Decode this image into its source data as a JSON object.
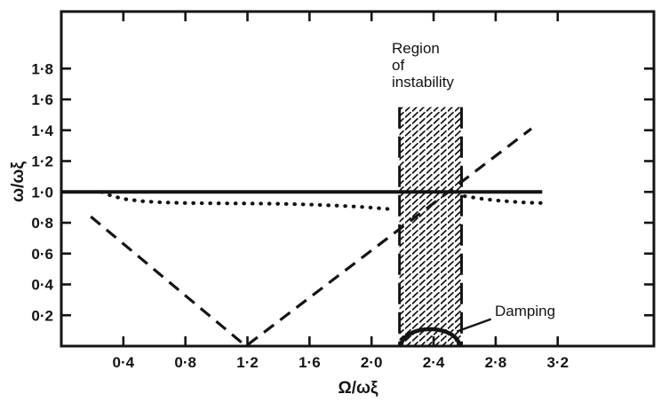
{
  "figure": {
    "background": "#ffffff",
    "ink": "#141414"
  },
  "chart_data": {
    "type": "line",
    "title": "",
    "xlabel": "Ω/ωξ",
    "ylabel": "ω/ωξ",
    "xlim": [
      0,
      3.82
    ],
    "ylim": [
      0,
      2.17
    ],
    "grid": false,
    "legend": "none",
    "x_ticks": {
      "values": [
        0.4,
        0.8,
        1.2,
        1.6,
        2.0,
        2.4,
        2.8,
        3.2
      ],
      "labels": [
        "0·4",
        "0·8",
        "1·2",
        "1·6",
        "2·0",
        "2·4",
        "2·8",
        "3·2"
      ]
    },
    "y_ticks": {
      "values": [
        0.2,
        0.4,
        0.6,
        0.8,
        1.0,
        1.2,
        1.4,
        1.6,
        1.8
      ],
      "labels": [
        "0·2",
        "0·4",
        "0·6",
        "0·8",
        "1·0",
        "1·2",
        "1·4",
        "1·6",
        "1·8"
      ]
    },
    "series": [
      {
        "name": "natural-frequency-solid-line",
        "style": "solid",
        "points": [
          [
            0,
            1.0
          ],
          [
            3.1,
            1.0
          ]
        ]
      },
      {
        "name": "frequency-dotted-curve-left",
        "style": "dotted",
        "points": [
          [
            0.26,
            1.0
          ],
          [
            0.33,
            0.972
          ],
          [
            0.42,
            0.952
          ],
          [
            0.52,
            0.94
          ],
          [
            0.65,
            0.932
          ],
          [
            0.8,
            0.928
          ],
          [
            1.0,
            0.926
          ],
          [
            1.2,
            0.925
          ],
          [
            1.4,
            0.923
          ],
          [
            1.6,
            0.918
          ],
          [
            1.8,
            0.91
          ],
          [
            1.95,
            0.902
          ],
          [
            2.05,
            0.894
          ],
          [
            2.15,
            0.886
          ]
        ]
      },
      {
        "name": "frequency-dotted-curve-right",
        "style": "dotted",
        "points": [
          [
            2.6,
            0.972
          ],
          [
            2.7,
            0.957
          ],
          [
            2.8,
            0.945
          ],
          [
            2.9,
            0.937
          ],
          [
            3.0,
            0.931
          ],
          [
            3.1,
            0.928
          ]
        ]
      },
      {
        "name": "excitation-dashed-line",
        "style": "dashed",
        "points": [
          [
            0.19,
            0.84
          ],
          [
            1.19,
            0.0
          ],
          [
            3.03,
            1.41
          ]
        ]
      }
    ],
    "instability_region": {
      "x1": 2.18,
      "x2": 2.58,
      "y_top": 1.55
    },
    "damping_curve": {
      "x1": 2.19,
      "x2": 2.565,
      "peak": 0.11
    },
    "annotations": {
      "region_label": "Region\nof\ninstability",
      "damping_label": "Damping",
      "damping_leader": {
        "from": [
          2.77,
          0.175
        ],
        "to": [
          2.55,
          0.095
        ]
      }
    }
  }
}
